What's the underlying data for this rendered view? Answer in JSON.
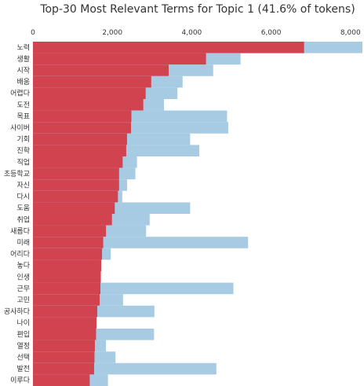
{
  "chart_data": {
    "type": "bar",
    "orientation": "horizontal",
    "title": "Top-30 Most Relevant Terms for Topic 1 (41.6% of tokens)",
    "xlim": [
      0,
      8300
    ],
    "xticks": [
      0,
      2000,
      4000,
      6000,
      8000
    ],
    "xtick_labels": [
      "0",
      "2,000",
      "4,000",
      "6,000",
      "8,000"
    ],
    "grid": false,
    "categories": [
      "노력",
      "생활",
      "시작",
      "배움",
      "어렵다",
      "도전",
      "목표",
      "사이버",
      "기회",
      "진학",
      "직업",
      "초등학교",
      "자신",
      "다시",
      "도움",
      "취업",
      "새롭다",
      "미래",
      "어리다",
      "놓다",
      "인생",
      "근무",
      "고민",
      "공사하다",
      "나이",
      "편입",
      "열정",
      "선택",
      "발전",
      "이루다"
    ],
    "series": [
      {
        "role": "overall",
        "color": "#a6cbe3",
        "values": [
          8300,
          5230,
          4540,
          3770,
          3640,
          3300,
          4890,
          4920,
          3960,
          4190,
          2620,
          2580,
          2370,
          2250,
          3960,
          2940,
          2850,
          5420,
          1960,
          1620,
          1700,
          5050,
          2270,
          3060,
          1590,
          3050,
          1840,
          2080,
          4620,
          1890
        ]
      },
      {
        "role": "topic",
        "color": "#d1434f",
        "values": [
          6830,
          4360,
          3420,
          2980,
          2840,
          2780,
          2480,
          2470,
          2370,
          2350,
          2260,
          2170,
          2170,
          2140,
          2060,
          1990,
          1840,
          1770,
          1740,
          1720,
          1710,
          1700,
          1680,
          1620,
          1600,
          1590,
          1560,
          1550,
          1540,
          1430
        ]
      }
    ]
  }
}
